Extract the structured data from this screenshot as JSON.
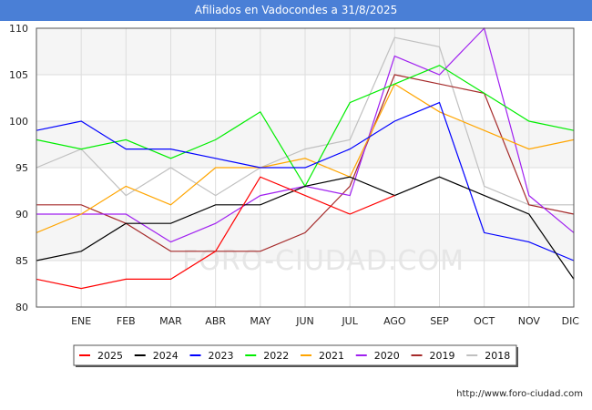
{
  "header": {
    "title": "Afiliados en Vadocondes a 31/8/2025"
  },
  "watermark": "FORO-CIUDAD.COM",
  "source": "http://www.foro-ciudad.com",
  "chart_data": {
    "type": "line",
    "title": "Afiliados en Vadocondes a 31/8/2025",
    "xlabel": "",
    "ylabel": "",
    "categories": [
      "",
      "ENE",
      "FEB",
      "MAR",
      "ABR",
      "MAY",
      "JUN",
      "JUL",
      "AGO",
      "SEP",
      "OCT",
      "NOV",
      "DIC"
    ],
    "ylim": [
      80,
      110
    ],
    "yticks": [
      80,
      85,
      90,
      95,
      100,
      105,
      110
    ],
    "grid": true,
    "legend_position": "bottom",
    "series": [
      {
        "name": "2025",
        "color": "#ff0000",
        "values": [
          83,
          82,
          83,
          83,
          86,
          94,
          92,
          90,
          92,
          null,
          null,
          null,
          null
        ]
      },
      {
        "name": "2024",
        "color": "#000000",
        "values": [
          85,
          86,
          89,
          89,
          91,
          91,
          93,
          94,
          92,
          94,
          92,
          90,
          83
        ]
      },
      {
        "name": "2023",
        "color": "#0000ff",
        "values": [
          99,
          100,
          97,
          97,
          96,
          95,
          95,
          97,
          100,
          102,
          88,
          87,
          85
        ]
      },
      {
        "name": "2022",
        "color": "#00ee00",
        "values": [
          98,
          97,
          98,
          96,
          98,
          101,
          93,
          102,
          104,
          106,
          103,
          100,
          99
        ]
      },
      {
        "name": "2021",
        "color": "#ffa500",
        "values": [
          88,
          90,
          93,
          91,
          95,
          95,
          96,
          94,
          104,
          101,
          99,
          97,
          98
        ]
      },
      {
        "name": "2020",
        "color": "#a020f0",
        "values": [
          90,
          90,
          90,
          87,
          89,
          92,
          93,
          92,
          107,
          105,
          110,
          92,
          88
        ]
      },
      {
        "name": "2019",
        "color": "#a52a2a",
        "values": [
          91,
          91,
          89,
          86,
          86,
          86,
          88,
          93,
          105,
          104,
          103,
          91,
          90
        ]
      },
      {
        "name": "2018",
        "color": "#c0c0c0",
        "values": [
          95,
          97,
          92,
          95,
          92,
          95,
          97,
          98,
          109,
          108,
          93,
          91,
          91
        ]
      }
    ]
  }
}
